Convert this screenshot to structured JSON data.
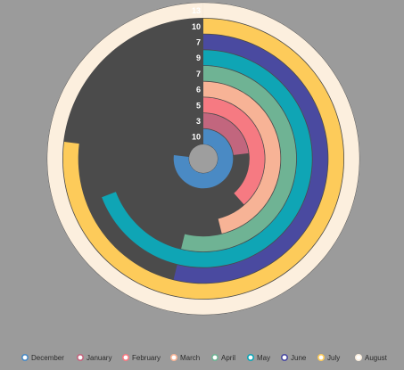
{
  "chart_data": {
    "type": "radial-bar",
    "max_value": 13,
    "track_color": "#4b4b4b",
    "center_color": "#9e9e9e",
    "series": [
      {
        "name": "December",
        "value": 10,
        "color": "#4a8ac4"
      },
      {
        "name": "January",
        "value": 3,
        "color": "#c2667e"
      },
      {
        "name": "February",
        "value": 5,
        "color": "#f67a82"
      },
      {
        "name": "March",
        "value": 6,
        "color": "#f7b396"
      },
      {
        "name": "April",
        "value": 7,
        "color": "#6fb394"
      },
      {
        "name": "May",
        "value": 9,
        "color": "#0fa5b5"
      },
      {
        "name": "June",
        "value": 7,
        "color": "#4a4aa0"
      },
      {
        "name": "July",
        "value": 10,
        "color": "#fdcb5a"
      },
      {
        "name": "August",
        "value": 13,
        "color": "#fcefde"
      }
    ],
    "legend_position": "bottom"
  }
}
